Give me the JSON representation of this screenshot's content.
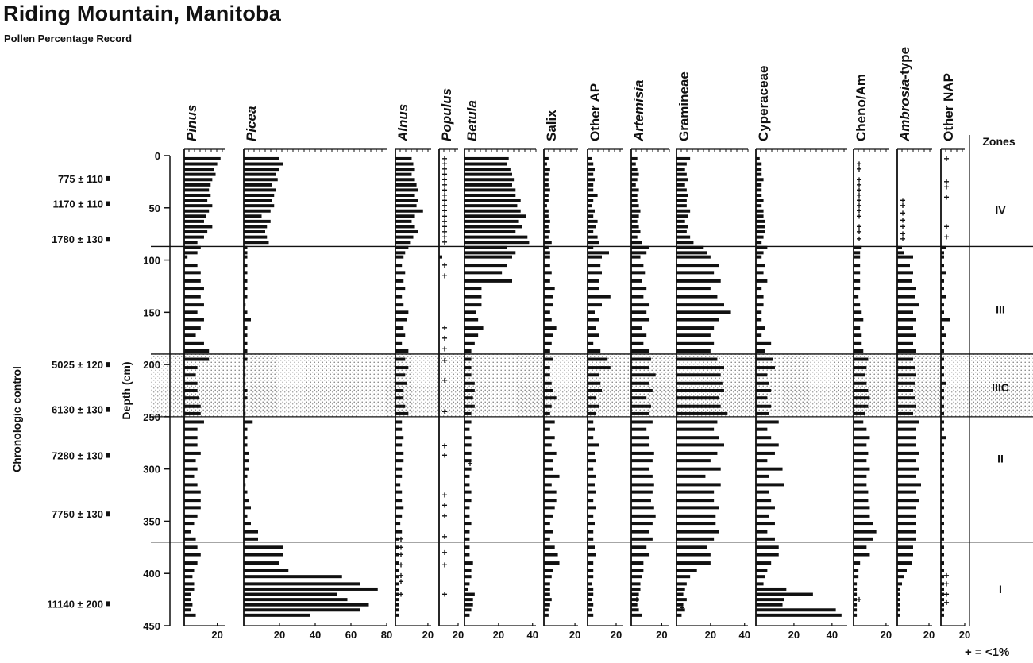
{
  "title": "Riding Mountain, Manitoba",
  "subtitle": "Pollen Percentage Record",
  "chart_data": {
    "type": "bar",
    "orientation": "horizontal",
    "y_axis": {
      "label": "Depth (cm)",
      "range": [
        0,
        450
      ],
      "ticks": [
        "0",
        "50",
        "100",
        "150",
        "200",
        "250",
        "300",
        "350",
        "400",
        "450"
      ]
    },
    "chronologic_control": {
      "label": "Chronologic control",
      "dates": [
        {
          "label": "775 ± 110",
          "depth": 22
        },
        {
          "label": "1170 ± 110",
          "depth": 46
        },
        {
          "label": "1780 ± 130",
          "depth": 80
        },
        {
          "label": "5025 ± 120",
          "depth": 200
        },
        {
          "label": "6130 ± 130",
          "depth": 243
        },
        {
          "label": "7280 ± 130",
          "depth": 287
        },
        {
          "label": "7750 ± 130",
          "depth": 343
        },
        {
          "label": "11140 ± 200",
          "depth": 429
        }
      ]
    },
    "depths": [
      3,
      8,
      13,
      18,
      23,
      28,
      33,
      38,
      43,
      48,
      53,
      58,
      63,
      68,
      73,
      78,
      83,
      88,
      93,
      97,
      105,
      112,
      120,
      127,
      135,
      143,
      150,
      157,
      165,
      172,
      180,
      187,
      195,
      203,
      210,
      218,
      225,
      232,
      240,
      247,
      255,
      262,
      270,
      277,
      285,
      292,
      300,
      307,
      315,
      322,
      330,
      337,
      345,
      352,
      360,
      367,
      375,
      382,
      390,
      397,
      403,
      410,
      415,
      420,
      425,
      430,
      435,
      440
    ],
    "series": [
      {
        "name": "Pinus",
        "italic": true,
        "scale_max": 25,
        "ticks": [
          "20"
        ],
        "values": [
          22,
          20,
          18,
          19,
          17,
          16,
          15,
          16,
          14,
          17,
          15,
          13,
          12,
          17,
          14,
          12,
          8,
          10,
          8,
          2,
          8,
          10,
          10,
          12,
          10,
          12,
          8,
          12,
          10,
          7,
          12,
          15,
          15,
          8,
          7,
          8,
          8,
          9,
          10,
          10,
          12,
          8,
          8,
          8,
          10,
          7,
          8,
          6,
          8,
          10,
          10,
          10,
          8,
          6,
          4,
          7,
          8,
          10,
          8,
          6,
          5,
          6,
          6,
          4,
          4,
          5,
          4,
          7
        ]
      },
      {
        "name": "Picea",
        "italic": true,
        "scale_max": 80,
        "ticks": [
          "20",
          "40",
          "60",
          "80"
        ],
        "values": [
          20,
          22,
          20,
          18,
          19,
          16,
          18,
          17,
          16,
          17,
          15,
          10,
          15,
          13,
          12,
          13,
          14,
          2,
          2,
          2,
          2,
          2,
          2,
          2,
          2,
          1,
          2,
          4,
          2,
          2,
          2,
          2,
          2,
          1,
          1,
          1,
          2,
          2,
          1,
          1,
          5,
          2,
          2,
          2,
          3,
          3,
          3,
          2,
          1,
          2,
          3,
          4,
          2,
          4,
          8,
          8,
          22,
          22,
          20,
          25,
          55,
          65,
          75,
          52,
          58,
          70,
          65,
          37
        ]
      },
      {
        "name": "Alnus",
        "italic": true,
        "scale_max": 22,
        "ticks": [
          "20"
        ],
        "values": [
          10,
          11,
          12,
          10,
          12,
          13,
          14,
          12,
          14,
          13,
          17,
          12,
          10,
          12,
          14,
          11,
          9,
          8,
          6,
          5,
          4,
          6,
          5,
          6,
          4,
          5,
          8,
          7,
          5,
          6,
          4,
          8,
          6,
          8,
          6,
          7,
          5,
          5,
          6,
          8,
          4,
          4,
          5,
          4,
          5,
          5,
          4,
          4,
          3,
          4,
          4,
          5,
          4,
          3,
          4,
          2,
          2,
          2,
          2,
          2,
          2,
          2,
          2,
          2,
          2,
          2,
          2,
          2
        ],
        "plus_depths": [
          367,
          375,
          382,
          392,
          402,
          408,
          420
        ]
      },
      {
        "name": "Populus",
        "italic": true,
        "scale_max": 12,
        "ticks": [
          "20"
        ],
        "values": [
          0,
          0,
          0,
          0,
          0,
          0,
          0,
          0,
          0,
          0,
          0,
          0,
          0,
          0,
          0,
          0,
          0,
          0,
          0,
          2,
          0,
          0,
          0,
          0,
          0,
          0,
          0,
          0,
          0,
          0,
          0,
          0,
          0,
          0,
          0,
          0,
          0,
          0,
          0,
          0,
          0,
          0,
          0,
          0,
          0,
          0,
          0,
          0,
          0,
          0,
          0,
          0,
          0,
          0,
          0,
          0,
          0,
          0,
          0,
          0,
          0,
          0,
          0,
          0,
          0,
          0,
          0,
          0
        ],
        "plus_depths": [
          3,
          8,
          13,
          18,
          23,
          28,
          33,
          38,
          43,
          48,
          53,
          58,
          63,
          68,
          73,
          78,
          83,
          105,
          115,
          165,
          175,
          185,
          196,
          215,
          245,
          278,
          287,
          325,
          335,
          345,
          365,
          380,
          392,
          420
        ]
      },
      {
        "name": "Betula",
        "italic": true,
        "scale_max": 42,
        "ticks": [
          "20",
          "40"
        ],
        "values": [
          26,
          25,
          27,
          28,
          29,
          28,
          30,
          30,
          33,
          31,
          33,
          36,
          32,
          34,
          30,
          37,
          38,
          25,
          30,
          28,
          25,
          22,
          28,
          10,
          10,
          10,
          7,
          8,
          11,
          8,
          6,
          4,
          4,
          4,
          4,
          6,
          6,
          5,
          6,
          4,
          4,
          3,
          4,
          4,
          4,
          4,
          4,
          3,
          3,
          4,
          4,
          3,
          3,
          4,
          3,
          3,
          3,
          3,
          5,
          4,
          4,
          3,
          2,
          6,
          5,
          5,
          4,
          3
        ],
        "plus_depths": [
          295
        ]
      },
      {
        "name": "Salix",
        "italic": false,
        "scale_max": 22,
        "ticks": [
          "20"
        ],
        "values": [
          3,
          2,
          4,
          3,
          3,
          3,
          4,
          3,
          3,
          2,
          3,
          3,
          4,
          3,
          4,
          3,
          5,
          3,
          4,
          4,
          4,
          5,
          4,
          7,
          6,
          6,
          4,
          5,
          8,
          6,
          5,
          4,
          6,
          4,
          4,
          5,
          6,
          8,
          5,
          4,
          7,
          4,
          7,
          5,
          8,
          6,
          6,
          10,
          5,
          8,
          8,
          7,
          6,
          4,
          6,
          4,
          7,
          9,
          10,
          6,
          5,
          4,
          4,
          4,
          5,
          4,
          3,
          3
        ]
      },
      {
        "name": "Other AP",
        "italic": false,
        "scale_max": 25,
        "ticks": [
          "20"
        ],
        "values": [
          3,
          4,
          5,
          4,
          5,
          4,
          4,
          7,
          4,
          3,
          5,
          4,
          7,
          6,
          4,
          7,
          8,
          4,
          15,
          10,
          9,
          10,
          8,
          8,
          16,
          10,
          5,
          8,
          6,
          8,
          4,
          9,
          14,
          16,
          8,
          9,
          10,
          6,
          8,
          6,
          4,
          5,
          4,
          8,
          5,
          6,
          4,
          6,
          5,
          6,
          4,
          6,
          4,
          5,
          4,
          4,
          5,
          6,
          4,
          4,
          4,
          3,
          4,
          4,
          3,
          4,
          3,
          4
        ]
      },
      {
        "name": "Artemisia",
        "italic": true,
        "scale_max": 25,
        "ticks": [
          "20"
        ],
        "values": [
          4,
          3,
          4,
          5,
          4,
          3,
          5,
          4,
          4,
          5,
          6,
          5,
          4,
          5,
          6,
          4,
          7,
          12,
          10,
          6,
          8,
          9,
          7,
          10,
          8,
          12,
          10,
          12,
          7,
          10,
          8,
          12,
          13,
          12,
          16,
          12,
          14,
          10,
          13,
          12,
          14,
          10,
          12,
          12,
          15,
          14,
          12,
          14,
          15,
          14,
          13,
          15,
          16,
          14,
          12,
          14,
          10,
          12,
          8,
          8,
          7,
          6,
          6,
          5,
          5,
          4,
          5,
          7
        ],
        "plus_depths": [
          425
        ]
      },
      {
        "name": "Gramineae",
        "italic": false,
        "scale_max": 42,
        "ticks": [
          "20",
          "40"
        ],
        "values": [
          8,
          6,
          5,
          6,
          7,
          5,
          6,
          7,
          6,
          6,
          8,
          7,
          5,
          7,
          6,
          8,
          10,
          16,
          18,
          20,
          25,
          22,
          26,
          20,
          24,
          28,
          32,
          25,
          22,
          20,
          22,
          20,
          24,
          28,
          26,
          27,
          28,
          25,
          26,
          30,
          24,
          22,
          25,
          28,
          24,
          20,
          26,
          17,
          26,
          22,
          22,
          25,
          23,
          23,
          25,
          22,
          18,
          20,
          20,
          12,
          8,
          6,
          5,
          4,
          6,
          4,
          5,
          3
        ],
        "plus_depths": [
          433
        ]
      },
      {
        "name": "Cyperaceae",
        "italic": false,
        "scale_max": 48,
        "ticks": [
          "20",
          "40"
        ],
        "values": [
          2,
          3,
          3,
          3,
          4,
          3,
          3,
          3,
          4,
          3,
          4,
          4,
          5,
          5,
          5,
          4,
          3,
          6,
          4,
          3,
          5,
          4,
          6,
          3,
          4,
          4,
          3,
          3,
          5,
          3,
          8,
          5,
          9,
          10,
          6,
          7,
          8,
          6,
          8,
          7,
          12,
          6,
          8,
          12,
          10,
          6,
          14,
          7,
          15,
          7,
          8,
          10,
          7,
          10,
          6,
          10,
          12,
          12,
          8,
          6,
          5,
          4,
          16,
          30,
          15,
          14,
          42,
          45
        ]
      },
      {
        "name": "Cheno/Am",
        "italic": false,
        "scale_max": 22,
        "ticks": [
          "20"
        ],
        "values": [
          0,
          0,
          0,
          0,
          0,
          0,
          0,
          0,
          0,
          0,
          0,
          0,
          0,
          0,
          0,
          0,
          0,
          5,
          4,
          4,
          4,
          4,
          4,
          4,
          3,
          4,
          5,
          6,
          4,
          5,
          5,
          6,
          9,
          8,
          7,
          8,
          9,
          10,
          9,
          7,
          6,
          8,
          10,
          8,
          9,
          8,
          10,
          8,
          8,
          9,
          9,
          10,
          10,
          12,
          14,
          12,
          8,
          10,
          4,
          3,
          3,
          2,
          2,
          2,
          2,
          2,
          2,
          2
        ],
        "plus_depths": [
          8,
          13,
          23,
          28,
          33,
          38,
          43,
          48,
          53,
          58,
          68,
          73,
          80,
          425
        ]
      },
      {
        "name": "Ambrosia-type",
        "italic_part": "Ambrosia",
        "suffix": "-type",
        "italic": true,
        "scale_max": 22,
        "ticks": [
          "20"
        ],
        "values": [
          0,
          0,
          0,
          0,
          0,
          0,
          0,
          0,
          0,
          0,
          0,
          0,
          0,
          0,
          0,
          0,
          0,
          3,
          4,
          10,
          8,
          10,
          9,
          12,
          11,
          14,
          10,
          12,
          10,
          12,
          10,
          12,
          10,
          11,
          12,
          11,
          10,
          11,
          12,
          10,
          14,
          12,
          12,
          12,
          14,
          12,
          14,
          12,
          15,
          12,
          14,
          12,
          12,
          12,
          12,
          12,
          10,
          10,
          9,
          6,
          4,
          3,
          2,
          2,
          2,
          2,
          2,
          2
        ],
        "plus_depths": [
          43,
          48,
          55,
          62,
          68,
          75,
          80
        ]
      },
      {
        "name": "Other NAP",
        "italic": false,
        "scale_max": 15,
        "ticks": [
          "20"
        ],
        "values": [
          0,
          0,
          0,
          0,
          0,
          0,
          0,
          0,
          0,
          0,
          0,
          0,
          0,
          0,
          0,
          0,
          0,
          3,
          2,
          2,
          2,
          3,
          2,
          2,
          3,
          2,
          2,
          6,
          2,
          3,
          2,
          2,
          2,
          2,
          2,
          3,
          2,
          2,
          2,
          2,
          2,
          2,
          3,
          2,
          2,
          2,
          2,
          2,
          2,
          2,
          2,
          2,
          2,
          2,
          2,
          2,
          2,
          2,
          2,
          2,
          2,
          2,
          2,
          2,
          2,
          2,
          2,
          2
        ],
        "plus_depths": [
          3,
          25,
          30,
          40,
          68,
          78,
          402,
          410,
          420,
          428
        ]
      }
    ],
    "zones": {
      "label": "Zones",
      "boundaries": [
        87,
        190,
        250,
        370
      ],
      "stippled_band": [
        190,
        250
      ],
      "labels": [
        {
          "text": "IV",
          "depth": 52
        },
        {
          "text": "III",
          "depth": 147
        },
        {
          "text": "IIIC",
          "depth": 222
        },
        {
          "text": "II",
          "depth": 290
        },
        {
          "text": "I",
          "depth": 415
        }
      ]
    },
    "legend": {
      "text": "+ = <1%",
      "position": "bottom-right"
    }
  }
}
